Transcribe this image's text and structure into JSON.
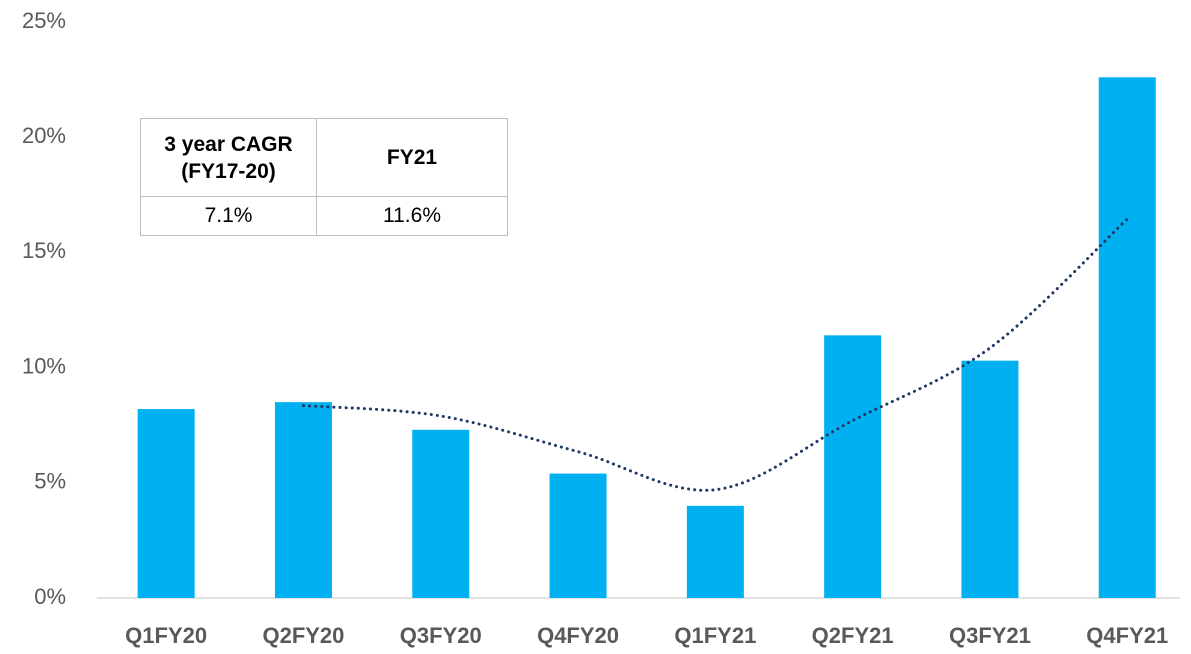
{
  "chart_data": {
    "type": "bar",
    "categories": [
      "Q1FY20",
      "Q2FY20",
      "Q3FY20",
      "Q4FY20",
      "Q1FY21",
      "Q2FY21",
      "Q3FY21",
      "Q4FY21"
    ],
    "values": [
      8.2,
      8.5,
      7.3,
      5.4,
      4.0,
      11.4,
      10.3,
      22.6
    ],
    "color": "#00b0f0",
    "trend": {
      "color": "#1f3864",
      "values": [
        null,
        8.35,
        7.9,
        6.35,
        4.7,
        7.7,
        10.85,
        16.45
      ]
    },
    "ylim": [
      0,
      25
    ],
    "yticks": [
      {
        "value": 0,
        "label": "0%"
      },
      {
        "value": 5,
        "label": "5%"
      },
      {
        "value": 10,
        "label": "10%"
      },
      {
        "value": 15,
        "label": "15%"
      },
      {
        "value": 20,
        "label": "20%"
      },
      {
        "value": 25,
        "label": "25%"
      }
    ],
    "table": {
      "header": [
        "3 year CAGR (FY17-20)",
        "FY21"
      ],
      "row": [
        "7.1%",
        "11.6%"
      ]
    }
  }
}
